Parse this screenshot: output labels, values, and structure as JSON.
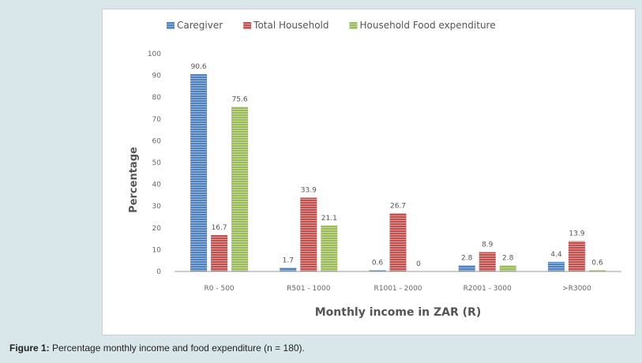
{
  "caption": {
    "label": "Figure 1:",
    "text": " Percentage monthly income and food expenditure (n = 180)."
  },
  "chart_data": {
    "type": "bar",
    "xlabel": "Monthly income in ZAR (R)",
    "ylabel": "Percentage",
    "ylim": [
      0,
      100
    ],
    "yticks": [
      0,
      10,
      20,
      30,
      40,
      50,
      60,
      70,
      80,
      90,
      100
    ],
    "grid": false,
    "legend_position": "top",
    "categories": [
      "R0 - 500",
      "R501 - 1000",
      "R1001 - 2000",
      "R2001 - 3000",
      ">R3000"
    ],
    "series": [
      {
        "name": "Caregiver",
        "color": "#4f81bd",
        "values": [
          90.6,
          1.7,
          0.6,
          2.8,
          4.4
        ],
        "labels": [
          "90.6",
          "1.7",
          "0.6",
          "2.8",
          "4.4"
        ]
      },
      {
        "name": "Total Household",
        "color": "#c0504d",
        "values": [
          16.7,
          33.9,
          26.7,
          8.9,
          13.9
        ],
        "labels": [
          "16.7",
          "33.9",
          "26.7",
          "8.9",
          "13.9"
        ]
      },
      {
        "name": "Household Food expenditure",
        "color": "#9bbb59",
        "values": [
          75.6,
          21.1,
          0,
          2.8,
          0.6
        ],
        "labels": [
          "75.6",
          "21.1",
          "0",
          "2.8",
          "0.6"
        ]
      }
    ]
  }
}
